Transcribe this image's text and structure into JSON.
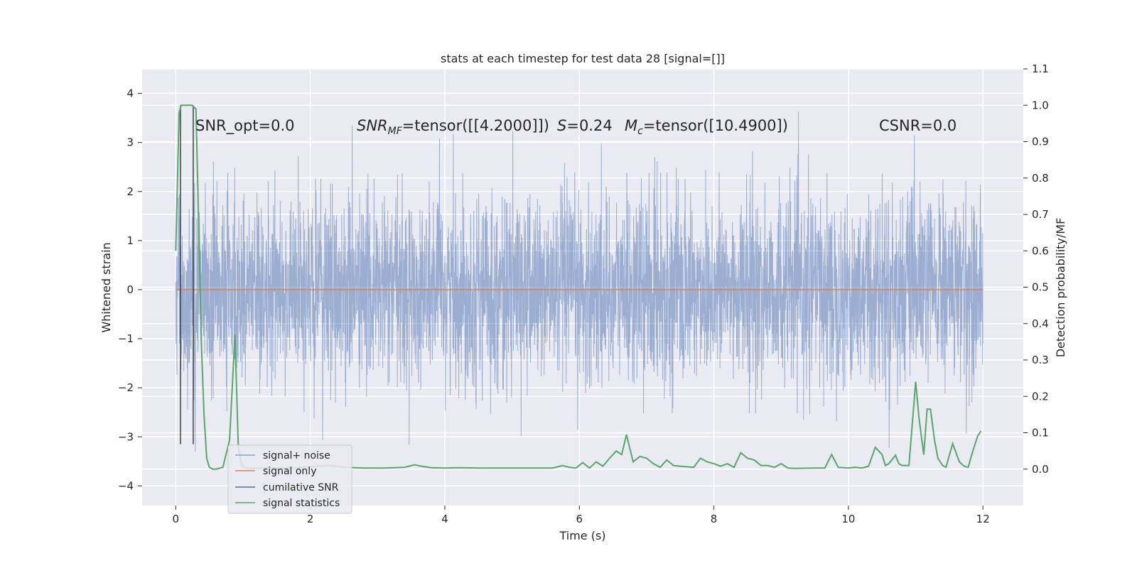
{
  "chart_data": {
    "type": "line",
    "title": "stats at each timestep for test data 28 [signal=[]]",
    "xlabel": "Time (s)",
    "ylabel_left": "Whitened strain",
    "ylabel_right": "Detection probability/MF",
    "xlim": [
      -0.5,
      12.6
    ],
    "ylim_left": [
      -4.4,
      4.5
    ],
    "ylim_right": [
      -0.1,
      1.1
    ],
    "x_ticks": [
      0,
      2,
      4,
      6,
      8,
      10,
      12
    ],
    "y_ticks_left": [
      -4,
      -3,
      -2,
      -1,
      0,
      1,
      2,
      3,
      4
    ],
    "y_ticks_right": [
      0.0,
      0.1,
      0.2,
      0.3,
      0.4,
      0.5,
      0.6,
      0.7,
      0.8,
      0.9,
      1.0,
      1.1
    ],
    "grid": true,
    "annotations": {
      "snr_opt": "SNR_opt=0.0",
      "snr_mf_prefix": "SNR",
      "snr_mf_sub": "MF",
      "snr_mf_value": "=tensor([[4.2000]])",
      "s_sym": "S",
      "s_value": "=0.24",
      "mc_sym": "M",
      "mc_sub": "c",
      "mc_value": "=tensor([10.4900])",
      "csnr": "CSNR=0.0"
    },
    "vlines_x": [
      0.07,
      0.26
    ],
    "series": [
      {
        "name": "signal+ noise",
        "color": "#4c72b0",
        "alpha": 0.5,
        "noise_std": 0.95,
        "samples": 4096,
        "x_range": [
          0,
          12
        ]
      },
      {
        "name": "signal only",
        "color": "#dd8452",
        "x": [
          0,
          12
        ],
        "y": [
          0,
          0
        ]
      },
      {
        "name": "cumilative SNR",
        "color": "#4c72b0",
        "x": [],
        "y": []
      },
      {
        "name": "signal statistics",
        "color": "#55a868",
        "axis": "right",
        "x": [
          0.0,
          0.05,
          0.08,
          0.12,
          0.18,
          0.24,
          0.3,
          0.35,
          0.38,
          0.42,
          0.46,
          0.5,
          0.55,
          0.6,
          0.7,
          0.8,
          0.88,
          0.93,
          0.98,
          1.05,
          1.15,
          1.3,
          1.5,
          1.7,
          1.9,
          2.1,
          2.3,
          2.5,
          2.8,
          3.1,
          3.4,
          3.55,
          3.65,
          3.8,
          4.0,
          4.2,
          4.5,
          5.0,
          5.3,
          5.6,
          5.75,
          5.85,
          5.95,
          6.05,
          6.15,
          6.25,
          6.35,
          6.45,
          6.55,
          6.63,
          6.7,
          6.8,
          6.9,
          7.0,
          7.1,
          7.2,
          7.3,
          7.4,
          7.5,
          7.7,
          7.8,
          7.9,
          8.0,
          8.1,
          8.2,
          8.3,
          8.4,
          8.5,
          8.6,
          8.7,
          8.8,
          8.9,
          9.0,
          9.1,
          9.2,
          9.5,
          9.65,
          9.75,
          9.85,
          10.0,
          10.1,
          10.2,
          10.3,
          10.4,
          10.5,
          10.55,
          10.6,
          10.7,
          10.75,
          10.8,
          10.9,
          11.0,
          11.05,
          11.12,
          11.17,
          11.22,
          11.28,
          11.33,
          11.4,
          11.45,
          11.55,
          11.65,
          11.72,
          11.78,
          11.85,
          11.92,
          11.97
        ],
        "y": [
          0.6,
          0.98,
          1.0,
          1.0,
          1.0,
          1.0,
          0.99,
          0.6,
          0.35,
          0.15,
          0.03,
          0.005,
          0.0,
          0.0,
          0.005,
          0.08,
          0.37,
          0.06,
          0.01,
          0.003,
          0.002,
          0.003,
          0.003,
          0.002,
          0.005,
          0.008,
          0.01,
          0.005,
          0.003,
          0.003,
          0.005,
          0.012,
          0.008,
          0.004,
          0.003,
          0.004,
          0.003,
          0.003,
          0.003,
          0.003,
          0.01,
          0.005,
          0.003,
          0.018,
          0.003,
          0.02,
          0.008,
          0.03,
          0.05,
          0.04,
          0.095,
          0.02,
          0.035,
          0.03,
          0.015,
          0.005,
          0.025,
          0.01,
          0.008,
          0.005,
          0.03,
          0.02,
          0.015,
          0.008,
          0.015,
          0.005,
          0.045,
          0.03,
          0.025,
          0.01,
          0.01,
          0.005,
          0.015,
          0.003,
          0.002,
          0.003,
          0.003,
          0.04,
          0.005,
          0.003,
          0.005,
          0.003,
          0.008,
          0.06,
          0.04,
          0.01,
          0.015,
          0.038,
          0.015,
          0.01,
          0.01,
          0.24,
          0.14,
          0.04,
          0.165,
          0.165,
          0.08,
          0.03,
          0.01,
          0.005,
          0.07,
          0.02,
          0.008,
          0.005,
          0.05,
          0.09,
          0.105
        ]
      }
    ],
    "legend": {
      "location": "lower-left",
      "entries": [
        "signal+ noise",
        "signal only",
        "cumilative SNR",
        "signal statistics"
      ]
    }
  },
  "colors": {
    "background": "#ffffff",
    "plot_area": "#eaeaf2",
    "grid": "#ffffff",
    "noise": "#4c72b0",
    "signal": "#dd8452",
    "cumulative": "#4c72b0",
    "statistics": "#55a868",
    "vline": "#404040"
  }
}
